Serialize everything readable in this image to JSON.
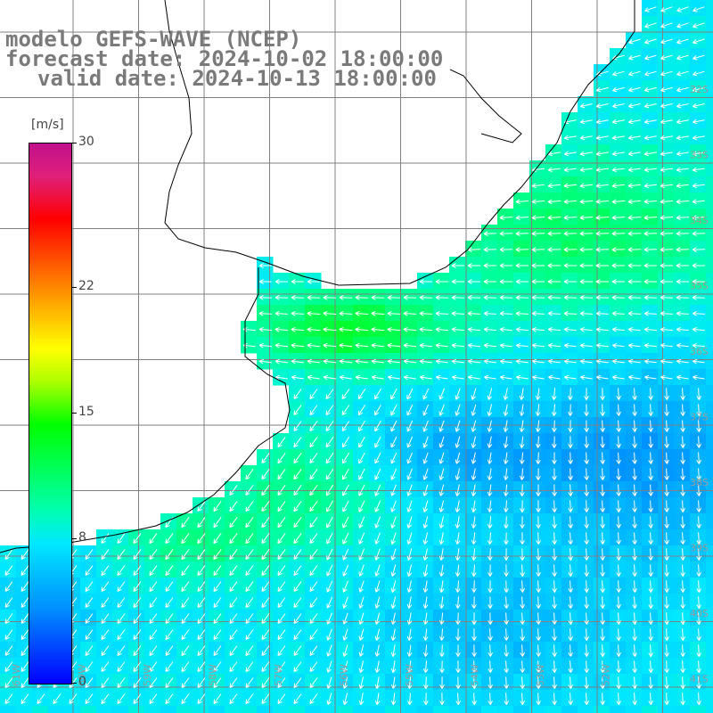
{
  "title": {
    "line1": "modelo GEFS-WAVE (NCEP)",
    "line2": "forecast date: 2024-10-02 18:00:00",
    "line3": "valid date: 2024-10-13 18:00:00"
  },
  "colorbar": {
    "unit": "[m/s]",
    "ticks": [
      "30",
      "22",
      "15",
      "8",
      "0"
    ],
    "tick_values": [
      30,
      22,
      15,
      8,
      0
    ],
    "min": 0,
    "max": 30
  },
  "map": {
    "lat_labels": [
      "32S",
      "33S",
      "34S",
      "35S",
      "36S",
      "37S",
      "38S",
      "39S",
      "40S",
      "41S"
    ],
    "lon_labels": [
      "61W",
      "60W",
      "59W",
      "58W",
      "57W",
      "56W",
      "55W",
      "54W",
      "53W",
      "52W"
    ],
    "land_color": "#ffffff",
    "grid_color": "#808080",
    "coast_color": "#000000",
    "arrow_color": "#ffffff"
  }
}
